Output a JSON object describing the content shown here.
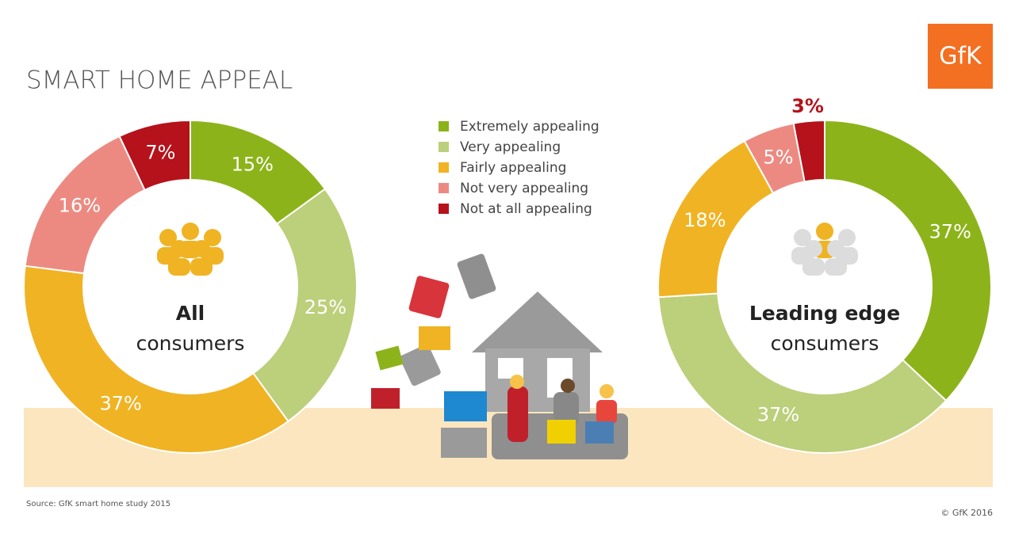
{
  "title": "SMART HOME APPEAL",
  "logo": "GfK",
  "source": "Source: GfK smart home study 2015",
  "copyright": "© GfK 2016",
  "chart_data": [
    {
      "type": "donut",
      "center_label": [
        "All",
        "consumers"
      ],
      "categories": [
        "Extremely appealing",
        "Very appealing",
        "Fairly appealing",
        "Not very appealing",
        "Not at all appealing"
      ],
      "values": [
        15,
        25,
        37,
        16,
        7
      ],
      "value_labels": [
        "15%",
        "25%",
        "37%",
        "16%",
        "7%"
      ],
      "colors": [
        "#8cb31a",
        "#bccf7a",
        "#f0b323",
        "#ec8a82",
        "#b5121b"
      ]
    },
    {
      "type": "donut",
      "center_label": [
        "Leading edge",
        "consumers"
      ],
      "values": [
        37,
        37,
        18,
        5,
        3
      ],
      "value_labels": [
        "37%",
        "37%",
        "18%",
        "5%",
        "3%"
      ],
      "colors": [
        "#8cb31a",
        "#bccf7a",
        "#f0b323",
        "#ec8a82",
        "#b5121b"
      ]
    }
  ]
}
